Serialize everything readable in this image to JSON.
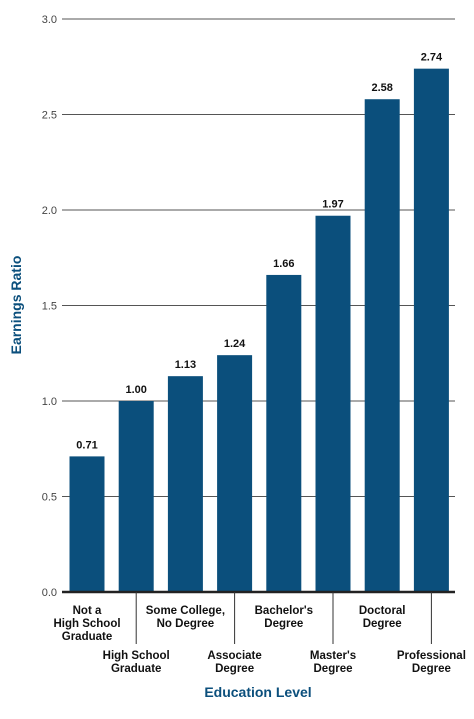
{
  "chart_data": {
    "type": "bar",
    "title": "",
    "xlabel": "Education Level",
    "ylabel": "Earnings Ratio",
    "ylim": [
      0,
      3.0
    ],
    "yticks": [
      "0.0",
      "0.5",
      "1.0",
      "1.5",
      "2.0",
      "2.5",
      "3.0"
    ],
    "grid": true,
    "categories": [
      [
        "Not a",
        "High School",
        "Graduate"
      ],
      [
        "High School",
        "Graduate"
      ],
      [
        "Some College,",
        "No Degree"
      ],
      [
        "Associate",
        "Degree"
      ],
      [
        "Bachelor's",
        "Degree"
      ],
      [
        "Master's",
        "Degree"
      ],
      [
        "Doctoral",
        "Degree"
      ],
      [
        "Professional",
        "Degree"
      ]
    ],
    "values": [
      0.71,
      1.0,
      1.13,
      1.24,
      1.66,
      1.97,
      2.58,
      2.74
    ],
    "value_labels": [
      "0.71",
      "1.00",
      "1.13",
      "1.24",
      "1.66",
      "1.97",
      "2.58",
      "2.74"
    ],
    "colors": {
      "bar": "#0b4f7c",
      "axis_title": "#0b4f7c",
      "grid": "#555555",
      "baseline": "#222222"
    }
  }
}
